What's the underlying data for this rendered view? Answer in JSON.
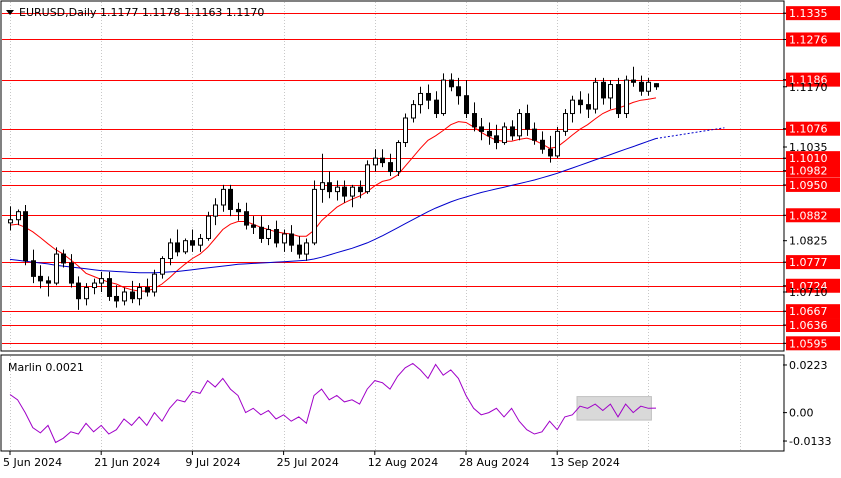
{
  "header": {
    "symbol_line": "EURUSD,Daily  1.1177 1.1178 1.1163 1.1170"
  },
  "colors": {
    "background": "#ffffff",
    "frame": "#000000",
    "grid": "#c8c8c8",
    "bull_body": "#ffffff",
    "bear_body": "#000000",
    "candle_wick": "#000000",
    "level_line": "#ff0000",
    "level_label_bg": "#ff0000",
    "level_label_text": "#ffffff",
    "fast_ma": "#ff0000",
    "slow_ma": "#0000cc",
    "oscillator": "#a000c8",
    "oscillator_box": "#d9d9d9"
  },
  "chart_data": [
    {
      "type": "candlestick",
      "name": "EURUSD,Daily",
      "ohlc_readout": {
        "open": 1.1177,
        "high": 1.1178,
        "low": 1.1163,
        "close": 1.117
      },
      "ylim": [
        1.058,
        1.136
      ],
      "price_scale_labels": [
        1.1335,
        1.1276,
        1.1186,
        1.117,
        1.1076,
        1.1035,
        1.101,
        1.0982,
        1.095,
        1.0882,
        1.0825,
        1.0777,
        1.0724,
        1.071,
        1.0667,
        1.0636,
        1.0595
      ],
      "horizontal_levels": [
        1.1335,
        1.1276,
        1.1186,
        1.1076,
        1.101,
        1.0982,
        1.095,
        1.0882,
        1.0777,
        1.0724,
        1.0667,
        1.0636,
        1.0595
      ],
      "date_labels": [
        {
          "label": "5 Jun 2024",
          "bar": 0
        },
        {
          "label": "21 Jun 2024",
          "bar": 12
        },
        {
          "label": "9 Jul 2024",
          "bar": 24
        },
        {
          "label": "25 Jul 2024",
          "bar": 36
        },
        {
          "label": "12 Aug 2024",
          "bar": 48
        },
        {
          "label": "28 Aug 2024",
          "bar": 60
        },
        {
          "label": "13 Sep 2024",
          "bar": 72
        }
      ],
      "candles": [
        [
          1.0865,
          1.0902,
          1.0848,
          1.0872
        ],
        [
          1.0872,
          1.0895,
          1.086,
          1.089
        ],
        [
          1.089,
          1.0905,
          1.077,
          1.078
        ],
        [
          1.078,
          1.0805,
          1.073,
          1.0745
        ],
        [
          1.0745,
          1.077,
          1.0718,
          1.0735
        ],
        [
          1.0735,
          1.0745,
          1.07,
          1.073
        ],
        [
          1.073,
          1.081,
          1.0725,
          1.0795
        ],
        [
          1.0795,
          1.0805,
          1.0765,
          1.0775
        ],
        [
          1.0775,
          1.0795,
          1.072,
          1.073
        ],
        [
          1.073,
          1.0745,
          1.067,
          1.0695
        ],
        [
          1.0695,
          1.073,
          1.068,
          1.072
        ],
        [
          1.072,
          1.074,
          1.0705,
          1.073
        ],
        [
          1.073,
          1.0755,
          1.071,
          1.074
        ],
        [
          1.074,
          1.0755,
          1.069,
          1.07
        ],
        [
          1.07,
          1.0725,
          1.0675,
          1.069
        ],
        [
          1.069,
          1.072,
          1.068,
          1.071
        ],
        [
          1.071,
          1.0735,
          1.0685,
          1.0695
        ],
        [
          1.0695,
          1.073,
          1.068,
          1.072
        ],
        [
          1.072,
          1.074,
          1.07,
          1.071
        ],
        [
          1.071,
          1.076,
          1.07,
          1.075
        ],
        [
          1.075,
          1.079,
          1.074,
          1.0785
        ],
        [
          1.0785,
          1.083,
          1.077,
          1.082
        ],
        [
          1.082,
          1.085,
          1.079,
          1.08
        ],
        [
          1.08,
          1.083,
          1.0795,
          1.0825
        ],
        [
          1.0825,
          1.085,
          1.08,
          1.0815
        ],
        [
          1.0815,
          1.084,
          1.08,
          1.083
        ],
        [
          1.083,
          1.089,
          1.0825,
          1.088
        ],
        [
          1.088,
          1.092,
          1.086,
          1.0905
        ],
        [
          1.0905,
          1.095,
          1.089,
          1.094
        ],
        [
          1.094,
          1.095,
          1.088,
          1.0895
        ],
        [
          1.0895,
          1.091,
          1.087,
          1.089
        ],
        [
          1.089,
          1.091,
          1.085,
          1.086
        ],
        [
          1.086,
          1.088,
          1.084,
          1.0855
        ],
        [
          1.0855,
          1.088,
          1.082,
          1.083
        ],
        [
          1.083,
          1.086,
          1.0815,
          1.085
        ],
        [
          1.085,
          1.087,
          1.081,
          1.082
        ],
        [
          1.082,
          1.085,
          1.08,
          1.084
        ],
        [
          1.084,
          1.086,
          1.08,
          1.0815
        ],
        [
          1.0815,
          1.0835,
          1.0785,
          1.0795
        ],
        [
          1.0795,
          1.083,
          1.078,
          1.082
        ],
        [
          1.082,
          1.096,
          1.0815,
          1.094
        ],
        [
          1.094,
          1.102,
          1.091,
          1.0955
        ],
        [
          1.0955,
          1.098,
          1.092,
          1.0935
        ],
        [
          1.0935,
          1.096,
          1.0915,
          1.0945
        ],
        [
          1.0945,
          1.096,
          1.091,
          1.0925
        ],
        [
          1.0925,
          1.095,
          1.09,
          1.0945
        ],
        [
          1.0945,
          1.096,
          1.092,
          1.0935
        ],
        [
          1.0935,
          1.1005,
          1.093,
          1.0995
        ],
        [
          1.0995,
          1.103,
          1.098,
          1.101
        ],
        [
          1.101,
          1.103,
          1.099,
          1.1
        ],
        [
          1.1,
          1.102,
          1.097,
          1.098
        ],
        [
          1.098,
          1.105,
          1.097,
          1.1045
        ],
        [
          1.1045,
          1.111,
          1.1035,
          1.11
        ],
        [
          1.11,
          1.114,
          1.109,
          1.113
        ],
        [
          1.113,
          1.117,
          1.111,
          1.1155
        ],
        [
          1.1155,
          1.1175,
          1.112,
          1.114
        ],
        [
          1.114,
          1.116,
          1.11,
          1.111
        ],
        [
          1.111,
          1.12,
          1.1105,
          1.1185
        ],
        [
          1.1185,
          1.12,
          1.116,
          1.117
        ],
        [
          1.117,
          1.119,
          1.113,
          1.115
        ],
        [
          1.115,
          1.1185,
          1.11,
          1.111
        ],
        [
          1.111,
          1.1135,
          1.107,
          1.108
        ],
        [
          1.108,
          1.11,
          1.105,
          1.107
        ],
        [
          1.107,
          1.109,
          1.104,
          1.106
        ],
        [
          1.106,
          1.1085,
          1.103,
          1.1045
        ],
        [
          1.1045,
          1.109,
          1.104,
          1.108
        ],
        [
          1.108,
          1.1095,
          1.105,
          1.106
        ],
        [
          1.106,
          1.112,
          1.105,
          1.111
        ],
        [
          1.111,
          1.113,
          1.106,
          1.1075
        ],
        [
          1.1075,
          1.109,
          1.104,
          1.105
        ],
        [
          1.105,
          1.107,
          1.102,
          1.103
        ],
        [
          1.103,
          1.106,
          1.1,
          1.1015
        ],
        [
          1.1015,
          1.108,
          1.101,
          1.107
        ],
        [
          1.107,
          1.112,
          1.106,
          1.111
        ],
        [
          1.111,
          1.115,
          1.109,
          1.114
        ],
        [
          1.114,
          1.116,
          1.111,
          1.113
        ],
        [
          1.113,
          1.1155,
          1.11,
          1.112
        ],
        [
          1.112,
          1.119,
          1.111,
          1.118
        ],
        [
          1.118,
          1.119,
          1.113,
          1.1145
        ],
        [
          1.1145,
          1.1185,
          1.112,
          1.1175
        ],
        [
          1.1175,
          1.119,
          1.11,
          1.111
        ],
        [
          1.111,
          1.1195,
          1.11,
          1.1185
        ],
        [
          1.1185,
          1.1215,
          1.117,
          1.118
        ],
        [
          1.118,
          1.1195,
          1.115,
          1.116
        ],
        [
          1.116,
          1.119,
          1.115,
          1.118
        ],
        [
          1.1177,
          1.1178,
          1.1163,
          1.117
        ]
      ],
      "indicators": [
        {
          "name": "fast moving average",
          "color": "#ff0000",
          "values": [
            1.086,
            1.0862,
            1.0855,
            1.0845,
            1.0832,
            1.0818,
            1.0805,
            1.0795,
            1.0782,
            1.0768,
            1.0752,
            1.0745,
            1.0738,
            1.0732,
            1.0728,
            1.072,
            1.0715,
            1.0712,
            1.0712,
            1.0718,
            1.0728,
            1.0742,
            1.0758,
            1.0772,
            1.0785,
            1.0795,
            1.081,
            1.083,
            1.085,
            1.0862,
            1.0868,
            1.0868,
            1.0862,
            1.0855,
            1.085,
            1.0845,
            1.0842,
            1.084,
            1.0835,
            1.0835,
            1.0848,
            1.087,
            1.0885,
            1.09,
            1.091,
            1.0918,
            1.0925,
            1.0935,
            1.0948,
            1.0958,
            1.0962,
            1.0972,
            1.0992,
            1.1012,
            1.1032,
            1.105,
            1.106,
            1.1072,
            1.1085,
            1.1092,
            1.109,
            1.108,
            1.1068,
            1.1058,
            1.105,
            1.1048,
            1.1048,
            1.1052,
            1.1055,
            1.105,
            1.1042,
            1.1032,
            1.1035,
            1.1048,
            1.1062,
            1.1075,
            1.1085,
            1.1098,
            1.111,
            1.1118,
            1.1122,
            1.1128,
            1.1135,
            1.114,
            1.1142,
            1.1145
          ]
        },
        {
          "name": "slow moving average",
          "color": "#0000cc",
          "values": [
            1.0783,
            1.0781,
            1.0779,
            1.0777,
            1.0775,
            1.0773,
            1.077,
            1.0768,
            1.0766,
            1.0764,
            1.0762,
            1.076,
            1.0758,
            1.0757,
            1.0756,
            1.0755,
            1.0754,
            1.0753,
            1.0753,
            1.0753,
            1.0754,
            1.0755,
            1.0756,
            1.0758,
            1.076,
            1.0762,
            1.0764,
            1.0766,
            1.0768,
            1.077,
            1.0772,
            1.0773,
            1.0774,
            1.0775,
            1.0776,
            1.0777,
            1.0778,
            1.0779,
            1.078,
            1.0781,
            1.0784,
            1.0788,
            1.0793,
            1.0798,
            1.0803,
            1.0808,
            1.0814,
            1.082,
            1.0828,
            1.0836,
            1.0845,
            1.0854,
            1.0863,
            1.0872,
            1.0881,
            1.089,
            1.0898,
            1.0905,
            1.0912,
            1.0918,
            1.0923,
            1.0928,
            1.0933,
            1.0937,
            1.0941,
            1.0945,
            1.0949,
            1.0953,
            1.0957,
            1.0961,
            1.0966,
            1.0971,
            1.0976,
            1.0982,
            1.0988,
            1.0994,
            1.1,
            1.1006,
            1.1012,
            1.1018,
            1.1024,
            1.103,
            1.1036,
            1.1042,
            1.1048,
            1.1054
          ],
          "projection": [
            1.1054,
            1.1062,
            1.107,
            1.1078
          ]
        }
      ]
    },
    {
      "type": "line",
      "name": "Marlin 0.0021",
      "ylim": [
        -0.0175,
        0.0265
      ],
      "scale_labels": [
        0.0223,
        0.0,
        -0.0133
      ],
      "values": [
        0.0085,
        0.006,
        0.0,
        -0.007,
        -0.0095,
        -0.006,
        -0.014,
        -0.012,
        -0.009,
        -0.01,
        -0.005,
        -0.009,
        -0.006,
        -0.01,
        -0.008,
        -0.003,
        -0.006,
        -0.002,
        -0.006,
        0.0,
        -0.004,
        0.002,
        0.006,
        0.005,
        0.01,
        0.009,
        0.015,
        0.012,
        0.016,
        0.011,
        0.008,
        0.0,
        0.002,
        -0.001,
        0.001,
        -0.003,
        -0.001,
        -0.004,
        -0.002,
        -0.005,
        0.008,
        0.011,
        0.006,
        0.008,
        0.005,
        0.006,
        0.004,
        0.011,
        0.015,
        0.014,
        0.011,
        0.017,
        0.021,
        0.023,
        0.02,
        0.016,
        0.0225,
        0.0175,
        0.02,
        0.016,
        0.008,
        0.002,
        -0.001,
        0.0,
        0.002,
        -0.002,
        0.002,
        -0.004,
        -0.008,
        -0.01,
        -0.009,
        -0.004,
        -0.008,
        -0.002,
        -0.001,
        0.003,
        0.002,
        0.004,
        0.001,
        0.004,
        -0.002,
        0.004,
        0.0,
        0.003,
        0.002,
        0.0021
      ],
      "highlight_range_bars": [
        75,
        84
      ]
    }
  ]
}
